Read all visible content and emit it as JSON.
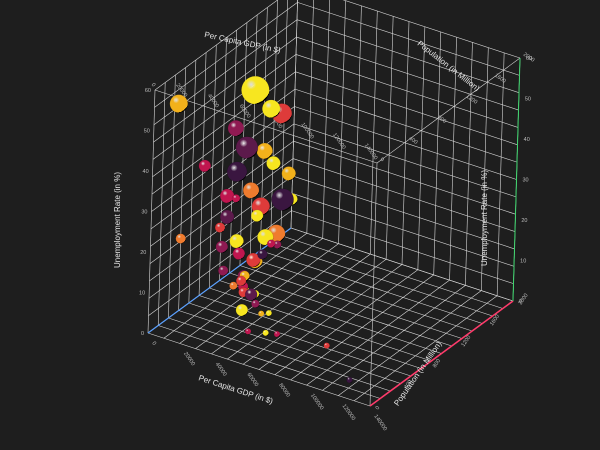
{
  "colors": {
    "background": "#1e1e1e",
    "grid": "#d9d9d9",
    "x_axis": "#ff3b6b",
    "y_axis": "#3bd46b",
    "z_axis": "#5aa0ff",
    "palette": [
      "#f7e620",
      "#f2b11b",
      "#ef7b2e",
      "#de3b3a",
      "#c0164f",
      "#8f1a52",
      "#5c1a4b",
      "#3a1640"
    ]
  },
  "chart_data": {
    "type": "scatter",
    "subtype": "3d-bubble",
    "title": "",
    "xlabel": "Per Capita GDP (in $)",
    "ylabel": "Unemployment Rate (in %)",
    "zlabel": "Population (in Million)",
    "xlim": [
      0,
      140000
    ],
    "ylim": [
      0,
      60
    ],
    "zlim": [
      0,
      2000
    ],
    "x_ticks": [
      "0",
      "20000",
      "40000",
      "60000",
      "80000",
      "100000",
      "120000",
      "140000"
    ],
    "y_ticks": [
      "0",
      "10",
      "20",
      "30",
      "40",
      "50",
      "60"
    ],
    "z_ticks": [
      "0",
      "400",
      "800",
      "1200",
      "1600",
      "2000"
    ],
    "grid": true,
    "legend": "none",
    "points": [
      {
        "x": 2000,
        "y": 53,
        "z": 300,
        "size": 9,
        "color": "#f2b11b"
      },
      {
        "x": 1500,
        "y": 42,
        "z": 1400,
        "size": 14,
        "color": "#f7e620"
      },
      {
        "x": 25000,
        "y": 46,
        "z": 600,
        "size": 8,
        "color": "#8f1a52"
      },
      {
        "x": 15000,
        "y": 38,
        "z": 400,
        "size": 6,
        "color": "#c0164f"
      },
      {
        "x": 3000,
        "y": 35,
        "z": 1600,
        "size": 9,
        "color": "#f7e620"
      },
      {
        "x": 6000,
        "y": 31,
        "z": 1200,
        "size": 11,
        "color": "#5c1a4b"
      },
      {
        "x": 1000,
        "y": 31,
        "z": 1800,
        "size": 10,
        "color": "#de3b3a"
      },
      {
        "x": 9000,
        "y": 28,
        "z": 1000,
        "size": 10,
        "color": "#3a1640"
      },
      {
        "x": 4000,
        "y": 26,
        "z": 1500,
        "size": 8,
        "color": "#f2b11b"
      },
      {
        "x": 12000,
        "y": 25,
        "z": 800,
        "size": 7,
        "color": "#c0164f"
      },
      {
        "x": 22000,
        "y": 27,
        "z": 700,
        "size": 4,
        "color": "#c0164f"
      },
      {
        "x": 30000,
        "y": 26,
        "z": 300,
        "size": 5,
        "color": "#de3b3a"
      },
      {
        "x": 1000,
        "y": 20,
        "z": 1700,
        "size": 7,
        "color": "#f7e620"
      },
      {
        "x": 5000,
        "y": 19,
        "z": 1300,
        "size": 8,
        "color": "#ef7b2e"
      },
      {
        "x": 8000,
        "y": 18,
        "z": 900,
        "size": 7,
        "color": "#5c1a4b"
      },
      {
        "x": 18000,
        "y": 17,
        "z": 1100,
        "size": 6,
        "color": "#f7e620"
      },
      {
        "x": 2000,
        "y": 15,
        "z": 1900,
        "size": 7,
        "color": "#f2b11b"
      },
      {
        "x": 7000,
        "y": 14,
        "z": 1400,
        "size": 9,
        "color": "#de3b3a"
      },
      {
        "x": 14000,
        "y": 14,
        "z": 700,
        "size": 6,
        "color": "#8f1a52"
      },
      {
        "x": 3000,
        "y": 10,
        "z": 1800,
        "size": 11,
        "color": "#3a1640"
      },
      {
        "x": 10000,
        "y": 11,
        "z": 1000,
        "size": 7,
        "color": "#f7e620"
      },
      {
        "x": 16000,
        "y": 10,
        "z": 900,
        "size": 6,
        "color": "#c0164f"
      },
      {
        "x": 24000,
        "y": 12,
        "z": 500,
        "size": 5,
        "color": "#8f1a52"
      },
      {
        "x": 35000,
        "y": 11,
        "z": 400,
        "size": 4,
        "color": "#ef7b2e"
      },
      {
        "x": 48000,
        "y": 13,
        "z": 250,
        "size": 5,
        "color": "#de3b3a"
      },
      {
        "x": 55000,
        "y": 14,
        "z": 200,
        "size": 6,
        "color": "#5c1a4b"
      },
      {
        "x": 60000,
        "y": 13,
        "z": 150,
        "size": 4,
        "color": "#8f1a52"
      },
      {
        "x": 52000,
        "y": 18,
        "z": 120,
        "size": 5,
        "color": "#de3b3a"
      },
      {
        "x": 66000,
        "y": 12,
        "z": 100,
        "size": 3,
        "color": "#f2b11b"
      },
      {
        "x": 70000,
        "y": 8,
        "z": 80,
        "size": 3,
        "color": "#f7e620"
      },
      {
        "x": 78000,
        "y": 9,
        "z": 60,
        "size": 3,
        "color": "#c0164f"
      },
      {
        "x": 62000,
        "y": 9,
        "z": 300,
        "size": 3,
        "color": "#f7e620"
      },
      {
        "x": 40000,
        "y": 7,
        "z": 600,
        "size": 4,
        "color": "#f7e620"
      },
      {
        "x": 28000,
        "y": 6,
        "z": 700,
        "size": 5,
        "color": "#c0164f"
      },
      {
        "x": 20000,
        "y": 5,
        "z": 900,
        "size": 5,
        "color": "#f2b11b"
      },
      {
        "x": 12000,
        "y": 4,
        "z": 1200,
        "size": 7,
        "color": "#de3b3a"
      },
      {
        "x": 6000,
        "y": 5,
        "z": 1500,
        "size": 8,
        "color": "#f7e620"
      },
      {
        "x": 4000,
        "y": 3,
        "z": 1700,
        "size": 9,
        "color": "#ef7b2e"
      },
      {
        "x": 9000,
        "y": 2,
        "z": 1300,
        "size": 7,
        "color": "#f2b11b"
      },
      {
        "x": 15000,
        "y": 3,
        "z": 1000,
        "size": 6,
        "color": "#8f1a52"
      },
      {
        "x": 25000,
        "y": 3,
        "z": 800,
        "size": 5,
        "color": "#f7e620"
      },
      {
        "x": 32000,
        "y": 2,
        "z": 600,
        "size": 6,
        "color": "#f7e620"
      },
      {
        "x": 45000,
        "y": 1,
        "z": 400,
        "size": 3,
        "color": "#c0164f"
      },
      {
        "x": 22000,
        "y": 8,
        "z": 1100,
        "size": 5,
        "color": "#3a1640"
      },
      {
        "x": 18000,
        "y": 6,
        "z": 1400,
        "size": 4,
        "color": "#8f1a52"
      },
      {
        "x": 90000,
        "y": 2,
        "z": 500,
        "size": 3,
        "color": "#de3b3a"
      },
      {
        "x": 118000,
        "y": 1,
        "z": 200,
        "size": 3,
        "color": "#3a1640"
      },
      {
        "x": 10000,
        "y": 22,
        "z": 200,
        "size": 5,
        "color": "#ef7b2e"
      },
      {
        "x": 2000,
        "y": 8,
        "z": 1950,
        "size": 6,
        "color": "#f7e620"
      },
      {
        "x": 36000,
        "y": 15,
        "z": 900,
        "size": 4,
        "color": "#c0164f"
      }
    ]
  }
}
